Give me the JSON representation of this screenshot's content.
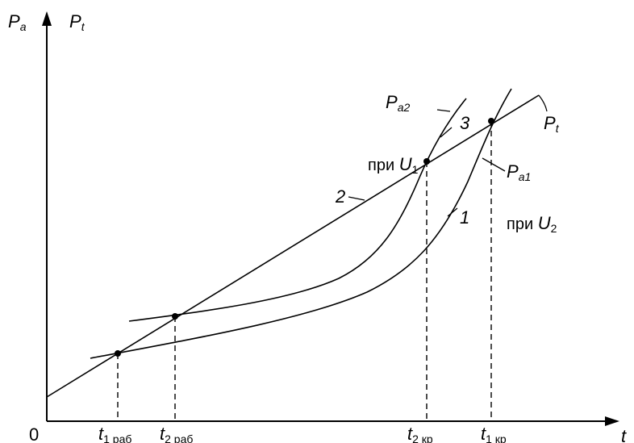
{
  "axes": {
    "y_label_a": "P",
    "y_label_a_sub": "a",
    "y_label_t": "P",
    "y_label_t_sub": "t",
    "x_label": "t",
    "origin": "0"
  },
  "curves": {
    "pt_label": "P",
    "pt_label_sub": "t",
    "pa2_label": "P",
    "pa2_label_sub": "a2",
    "pa1_label": "P",
    "pa1_label_sub": "a1",
    "num_1": "1",
    "num_2": "2",
    "num_3": "3"
  },
  "conditions": {
    "u1_text": "при ",
    "u1_var": "U",
    "u1_sub": "1",
    "u2_text": "при ",
    "u2_var": "U",
    "u2_sub": "2"
  },
  "ticks": {
    "t1_rab": "t",
    "t1_rab_sub": "1 раб",
    "t2_rab": "t",
    "t2_rab_sub": "2 раб",
    "t2_kr": "t",
    "t2_kr_sub": "2 кр",
    "t1_kr": "t",
    "t1_kr_sub": "1 кр"
  }
}
